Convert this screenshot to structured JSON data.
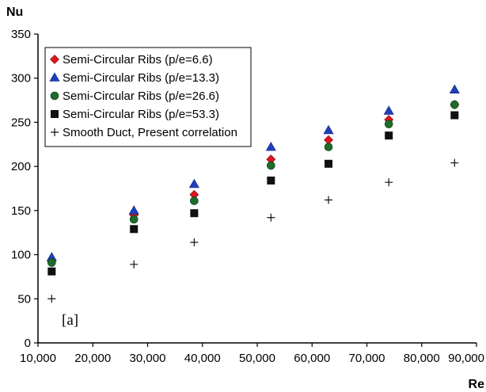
{
  "chart_data": {
    "type": "scatter",
    "title": "",
    "xlabel": "Re",
    "ylabel": "Nu",
    "xlim": [
      10000,
      90000
    ],
    "ylim": [
      0,
      350
    ],
    "xticks": [
      "10,000",
      "20,000",
      "30,000",
      "40,000",
      "50,000",
      "60,000",
      "70,000",
      "80,000",
      "90,000"
    ],
    "yticks": [
      "0",
      "50",
      "100",
      "150",
      "200",
      "250",
      "300",
      "350"
    ],
    "grid": false,
    "legend_position": "top-left",
    "annotation": "[a]",
    "series": [
      {
        "name": "Semi-Circular Ribs (p/e=6.6)",
        "marker": "diamond",
        "color": "#e0141e",
        "x": [
          12500,
          27500,
          38500,
          52500,
          63000,
          74000,
          86000
        ],
        "y": [
          93,
          145,
          168,
          208,
          230,
          253,
          270
        ]
      },
      {
        "name": "Semi-Circular Ribs (p/e=13.3)",
        "marker": "triangle",
        "color": "#1f3fbf",
        "x": [
          12500,
          27500,
          38500,
          52500,
          63000,
          74000,
          86000
        ],
        "y": [
          97,
          150,
          180,
          222,
          241,
          263,
          287
        ]
      },
      {
        "name": "Semi-Circular Ribs (p/e=26.6)",
        "marker": "circle",
        "color": "#1e6b2a",
        "x": [
          12500,
          27500,
          38500,
          52500,
          63000,
          74000,
          86000
        ],
        "y": [
          91,
          140,
          161,
          201,
          222,
          248,
          270
        ]
      },
      {
        "name": "Semi-Circular Ribs (p/e=53.3)",
        "marker": "square",
        "color": "#111111",
        "x": [
          12500,
          27500,
          38500,
          52500,
          63000,
          74000,
          86000
        ],
        "y": [
          81,
          129,
          147,
          184,
          203,
          235,
          258
        ]
      },
      {
        "name": "Smooth Duct, Present correlation",
        "marker": "plus",
        "color": "#111111",
        "x": [
          12500,
          27500,
          38500,
          52500,
          63000,
          74000,
          86000
        ],
        "y": [
          50,
          89,
          114,
          142,
          162,
          182,
          204
        ]
      }
    ]
  }
}
